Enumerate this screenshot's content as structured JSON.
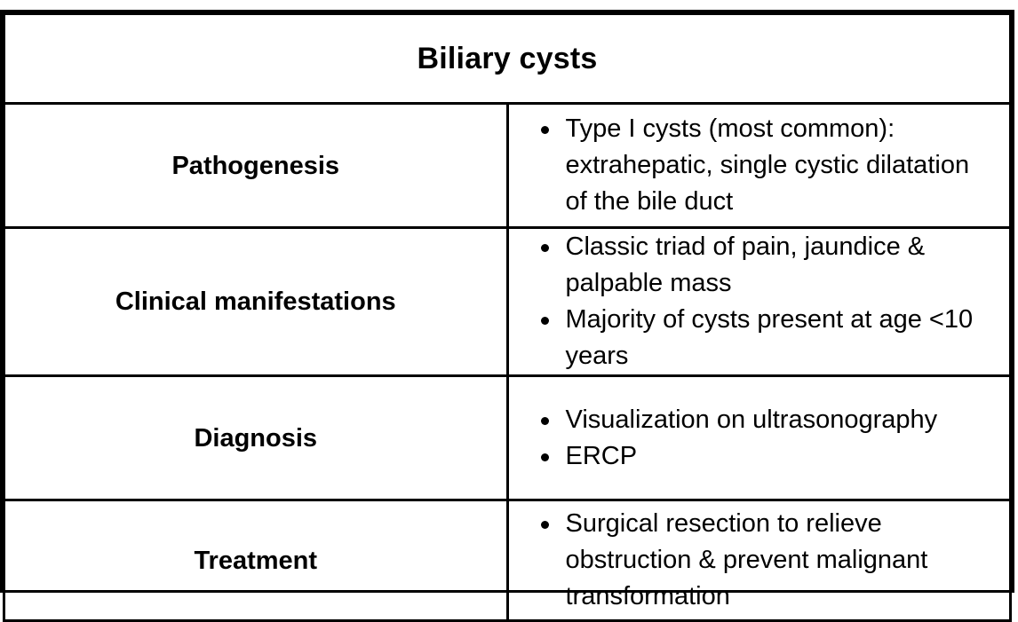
{
  "title": "Biliary cysts",
  "rows": [
    {
      "label": "Pathogenesis",
      "items": [
        "Type I cysts (most common): extrahepatic, single cystic dilatation of the bile duct"
      ]
    },
    {
      "label": "Clinical manifestations",
      "items": [
        "Classic triad of pain, jaundice & palpable mass",
        "Majority of cysts present at age <10 years"
      ]
    },
    {
      "label": "Diagnosis",
      "items": [
        "Visualization on ultrasonography",
        "ERCP"
      ]
    },
    {
      "label": "Treatment",
      "items": [
        "Surgical resection to relieve obstruction & prevent malignant transformation"
      ]
    }
  ]
}
